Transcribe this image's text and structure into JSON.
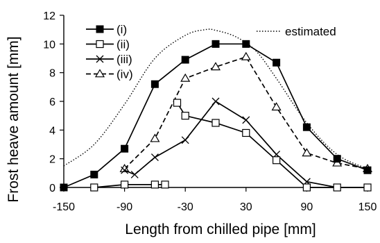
{
  "chart_data": {
    "type": "line",
    "xlabel": "Length from chilled pipe [mm]",
    "ylabel": "Frost heave amount [mm]",
    "xlim": [
      -150,
      150
    ],
    "ylim": [
      0,
      12
    ],
    "xticks": [
      -150,
      -90,
      -30,
      30,
      90,
      150
    ],
    "yticks": [
      0,
      2,
      4,
      6,
      8,
      10,
      12
    ],
    "grid": false,
    "legend_placement": "top-left and top-right",
    "series": [
      {
        "name": "(i)",
        "marker": "filled-square",
        "line": "solid",
        "color": "#000000",
        "points": [
          [
            -150,
            0
          ],
          [
            -120,
            0.9
          ],
          [
            -90,
            2.7
          ],
          [
            -60,
            7.2
          ],
          [
            -30,
            8.9
          ],
          [
            0,
            10.0
          ],
          [
            30,
            10.0
          ],
          [
            60,
            8.7
          ],
          [
            90,
            4.2
          ],
          [
            120,
            2.0
          ],
          [
            150,
            1.2
          ]
        ]
      },
      {
        "name": "(ii)",
        "marker": "open-square",
        "line": "solid",
        "color": "#000000",
        "segments": [
          [
            [
              -120,
              0
            ],
            [
              -90,
              0.2
            ],
            [
              -60,
              0.2
            ],
            [
              -50,
              0.2
            ]
          ],
          [
            [
              -38,
              5.9
            ],
            [
              -30,
              5.0
            ],
            [
              0,
              4.5
            ],
            [
              30,
              3.8
            ],
            [
              60,
              1.9
            ],
            [
              90,
              0
            ],
            [
              120,
              0
            ],
            [
              150,
              0
            ]
          ]
        ]
      },
      {
        "name": "(iii)",
        "marker": "x",
        "line": "solid",
        "color": "#000000",
        "points": [
          [
            -90,
            1.2
          ],
          [
            -80,
            0.9
          ],
          [
            -60,
            2.1
          ],
          [
            -30,
            3.3
          ],
          [
            0,
            6.0
          ],
          [
            30,
            4.7
          ],
          [
            60,
            2.3
          ],
          [
            90,
            0.4
          ],
          [
            120,
            0
          ],
          [
            150,
            0
          ]
        ]
      },
      {
        "name": "(iv)",
        "marker": "open-triangle",
        "line": "dashed",
        "color": "#000000",
        "points": [
          [
            -90,
            1.3
          ],
          [
            -60,
            3.4
          ],
          [
            -30,
            7.6
          ],
          [
            0,
            8.4
          ],
          [
            30,
            9.1
          ],
          [
            60,
            5.6
          ],
          [
            90,
            2.4
          ],
          [
            120,
            1.7
          ],
          [
            150,
            1.3
          ]
        ]
      },
      {
        "name": "estimated",
        "marker": "none",
        "line": "dotted",
        "color": "#000000",
        "points": [
          [
            -150,
            1.5
          ],
          [
            -120,
            3.0
          ],
          [
            -90,
            5.8
          ],
          [
            -60,
            9.0
          ],
          [
            -30,
            10.6
          ],
          [
            -10,
            11.0
          ],
          [
            0,
            10.95
          ],
          [
            20,
            10.5
          ],
          [
            40,
            9.5
          ],
          [
            60,
            7.6
          ],
          [
            90,
            4.5
          ],
          [
            120,
            2.3
          ],
          [
            150,
            1.3
          ]
        ]
      }
    ]
  }
}
